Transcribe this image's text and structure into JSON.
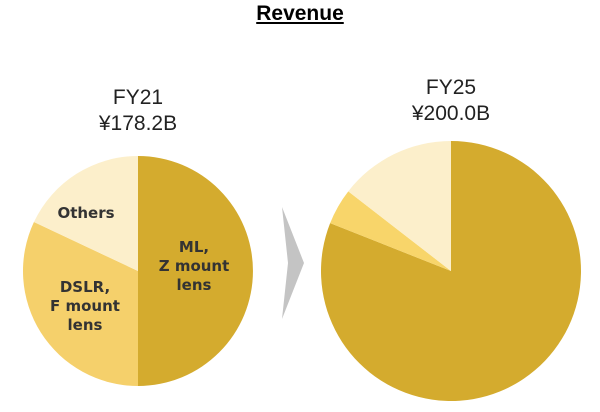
{
  "title": "Revenue",
  "colors": {
    "ml_z_mount": "#D4AB2E",
    "dslr_f_mount": "#F5D06B",
    "others_fy25_small": "#F8D56A",
    "others": "#FCEFCB",
    "arrow": "#C4C4C4"
  },
  "chart_data": [
    {
      "type": "pie",
      "title": "FY21",
      "subtitle": "¥178.2B",
      "slices": [
        {
          "label": "ML,\nZ mount\nlens",
          "lines": [
            "ML,",
            "Z mount",
            "lens"
          ],
          "value": 50.0,
          "color": "#D4AB2E"
        },
        {
          "label": "DSLR,\nF mount\nlens",
          "lines": [
            "DSLR,",
            "F mount",
            "lens"
          ],
          "value": 32.0,
          "color": "#F5D06B"
        },
        {
          "label": "Others",
          "lines": [
            "Others"
          ],
          "value": 18.0,
          "color": "#FCEFCB"
        }
      ]
    },
    {
      "type": "pie",
      "title": "FY25",
      "subtitle": "¥200.0B",
      "slices": [
        {
          "label": "",
          "value": 81.0,
          "color": "#D4AB2E"
        },
        {
          "label": "",
          "value": 4.5,
          "color": "#F8D56A"
        },
        {
          "label": "",
          "value": 14.5,
          "color": "#FCEFCB"
        }
      ]
    }
  ]
}
